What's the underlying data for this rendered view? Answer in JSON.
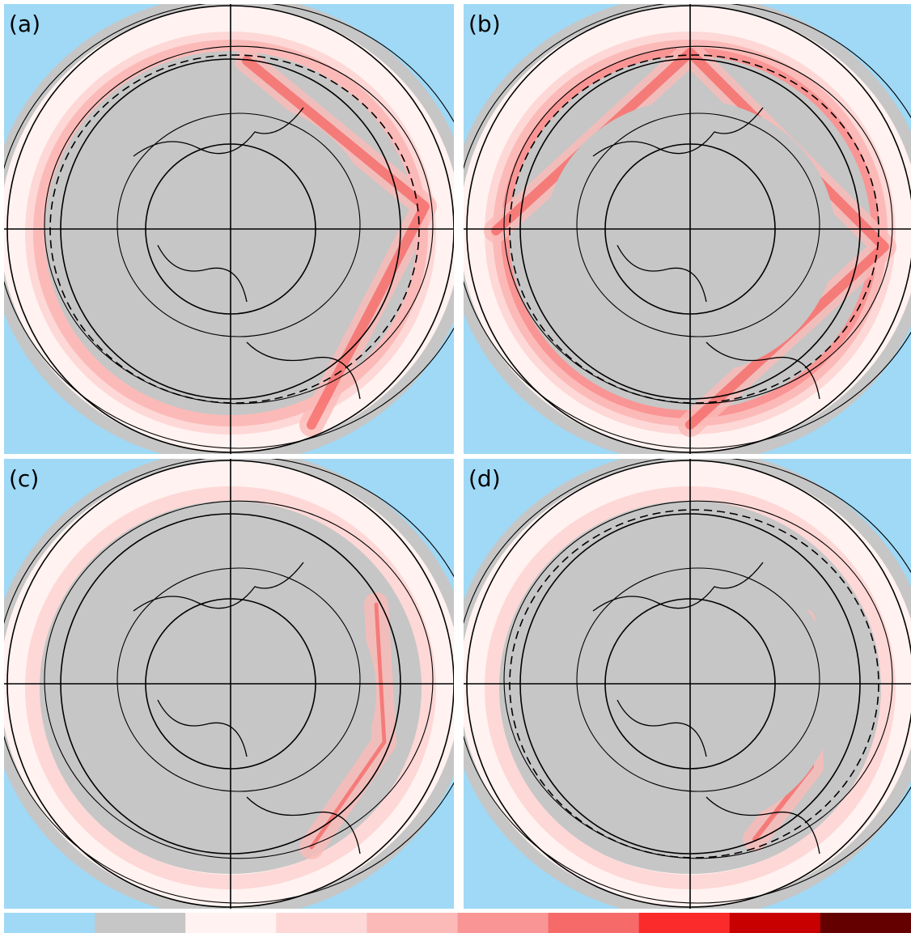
{
  "panels": [
    {
      "label": "(a)"
    },
    {
      "label": "(b)"
    },
    {
      "label": "(c)"
    },
    {
      "label": "(d)"
    }
  ],
  "colorbar": {
    "colors": [
      "#9fd9f6",
      "#c6c6c6",
      "#fff2f0",
      "#fdd8d6",
      "#fbbab8",
      "#f99594",
      "#f66a69",
      "#fb2b2b",
      "#c80000",
      "#650000"
    ]
  }
}
